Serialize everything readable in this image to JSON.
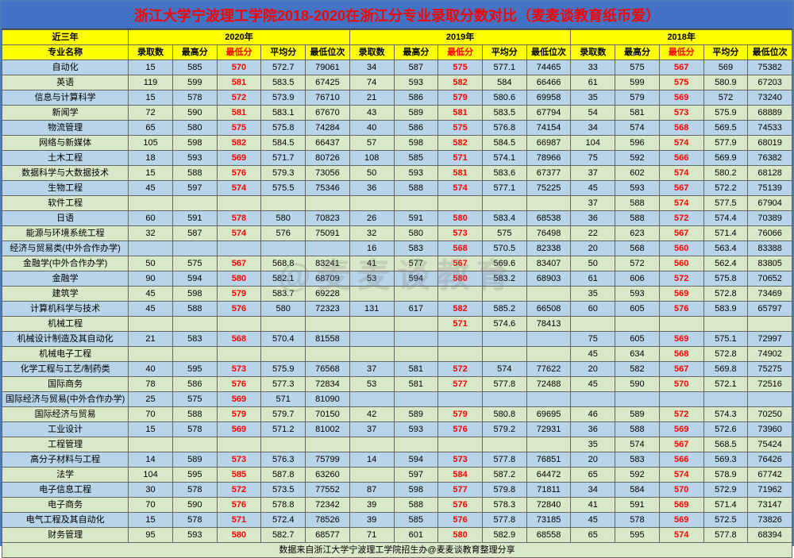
{
  "title": "浙江大学宁波理工学院2018-2020在浙江分专业录取分数对比（麦麦谈教育纸币爱）",
  "corner_header": "近三年",
  "major_header": "专业名称",
  "year_headers": [
    "2020年",
    "2019年",
    "2018年"
  ],
  "sub_headers": [
    "录取数",
    "最高分",
    "最低分",
    "平均分",
    "最低位次"
  ],
  "footer": "数据来自浙江大学宁波理工学院招生办@麦麦谈教育整理分享",
  "watermark": "@麦麦谈教育",
  "colors": {
    "title_bg": "#4472c4",
    "title_fg": "#ff0000",
    "header_bg": "#ffff00",
    "stripe_a": "#b8d4e8",
    "stripe_b": "#d9e8c9",
    "minscore_fg": "#ff0000"
  },
  "rows": [
    {
      "major": "自动化",
      "y2020": [
        "15",
        "585",
        "570",
        "572.7",
        "79061"
      ],
      "y2019": [
        "34",
        "587",
        "575",
        "577.1",
        "74465"
      ],
      "y2018": [
        "33",
        "575",
        "567",
        "569",
        "75382"
      ]
    },
    {
      "major": "英语",
      "y2020": [
        "119",
        "599",
        "581",
        "583.5",
        "67425"
      ],
      "y2019": [
        "74",
        "593",
        "582",
        "584",
        "66466"
      ],
      "y2018": [
        "61",
        "599",
        "575",
        "580.9",
        "67203"
      ]
    },
    {
      "major": "信息与计算科学",
      "y2020": [
        "15",
        "578",
        "572",
        "573.9",
        "76710"
      ],
      "y2019": [
        "21",
        "586",
        "579",
        "580.6",
        "69958"
      ],
      "y2018": [
        "35",
        "579",
        "569",
        "572",
        "73240"
      ]
    },
    {
      "major": "新闻学",
      "y2020": [
        "72",
        "590",
        "581",
        "583.1",
        "67670"
      ],
      "y2019": [
        "43",
        "589",
        "581",
        "583.5",
        "67794"
      ],
      "y2018": [
        "54",
        "581",
        "573",
        "575.9",
        "68889"
      ]
    },
    {
      "major": "物流管理",
      "y2020": [
        "65",
        "580",
        "575",
        "575.8",
        "74284"
      ],
      "y2019": [
        "40",
        "586",
        "575",
        "576.8",
        "74154"
      ],
      "y2018": [
        "34",
        "574",
        "568",
        "569.5",
        "74533"
      ]
    },
    {
      "major": "网络与新媒体",
      "y2020": [
        "105",
        "598",
        "582",
        "584.5",
        "66437"
      ],
      "y2019": [
        "57",
        "598",
        "582",
        "584.5",
        "66987"
      ],
      "y2018": [
        "104",
        "596",
        "574",
        "577.9",
        "68019"
      ]
    },
    {
      "major": "土木工程",
      "y2020": [
        "18",
        "593",
        "569",
        "571.7",
        "80726"
      ],
      "y2019": [
        "108",
        "585",
        "571",
        "574.1",
        "78966"
      ],
      "y2018": [
        "75",
        "592",
        "566",
        "569.9",
        "76382"
      ]
    },
    {
      "major": "数据科学与大数据技术",
      "y2020": [
        "15",
        "588",
        "576",
        "579.3",
        "73056"
      ],
      "y2019": [
        "50",
        "593",
        "581",
        "583.6",
        "67377"
      ],
      "y2018": [
        "37",
        "602",
        "574",
        "580.2",
        "68128"
      ]
    },
    {
      "major": "生物工程",
      "y2020": [
        "45",
        "597",
        "574",
        "575.5",
        "75346"
      ],
      "y2019": [
        "36",
        "588",
        "574",
        "577.1",
        "75225"
      ],
      "y2018": [
        "45",
        "593",
        "567",
        "572.2",
        "75139"
      ]
    },
    {
      "major": "软件工程",
      "y2020": [
        "",
        "",
        "",
        "",
        ""
      ],
      "y2019": [
        "",
        "",
        "",
        "",
        ""
      ],
      "y2018": [
        "37",
        "588",
        "574",
        "577.5",
        "67904"
      ]
    },
    {
      "major": "日语",
      "y2020": [
        "60",
        "591",
        "578",
        "580",
        "70823"
      ],
      "y2019": [
        "26",
        "591",
        "580",
        "583.4",
        "68538"
      ],
      "y2018": [
        "36",
        "588",
        "572",
        "574.4",
        "70389"
      ]
    },
    {
      "major": "能源与环境系统工程",
      "y2020": [
        "32",
        "587",
        "574",
        "576",
        "75091"
      ],
      "y2019": [
        "32",
        "580",
        "573",
        "575",
        "76498"
      ],
      "y2018": [
        "22",
        "623",
        "567",
        "571.4",
        "76066"
      ]
    },
    {
      "major": "经济与贸易类(中外合作办学)",
      "y2020": [
        "",
        "",
        "",
        "",
        ""
      ],
      "y2019": [
        "16",
        "583",
        "568",
        "570.5",
        "82338"
      ],
      "y2018": [
        "20",
        "568",
        "560",
        "563.4",
        "83388"
      ]
    },
    {
      "major": "金融学(中外合作办学)",
      "y2020": [
        "50",
        "575",
        "567",
        "568.8",
        "83241"
      ],
      "y2019": [
        "41",
        "577",
        "567",
        "569.6",
        "83407"
      ],
      "y2018": [
        "50",
        "572",
        "560",
        "562.4",
        "83805"
      ]
    },
    {
      "major": "金融学",
      "y2020": [
        "90",
        "594",
        "580",
        "582.1",
        "68709"
      ],
      "y2019": [
        "53",
        "594",
        "580",
        "583.2",
        "68903"
      ],
      "y2018": [
        "61",
        "606",
        "572",
        "575.8",
        "70652"
      ]
    },
    {
      "major": "建筑学",
      "y2020": [
        "45",
        "598",
        "579",
        "583.7",
        "69228"
      ],
      "y2019": [
        "",
        "",
        "",
        "",
        ""
      ],
      "y2018": [
        "35",
        "593",
        "569",
        "572.8",
        "73469"
      ]
    },
    {
      "major": "计算机科学与技术",
      "y2020": [
        "45",
        "588",
        "576",
        "580",
        "72323"
      ],
      "y2019": [
        "131",
        "617",
        "582",
        "585.2",
        "66508"
      ],
      "y2018": [
        "60",
        "605",
        "576",
        "583.9",
        "65797"
      ]
    },
    {
      "major": "机械工程",
      "y2020": [
        "",
        "",
        "",
        "",
        ""
      ],
      "y2019": [
        "",
        "",
        "571",
        "574.6",
        "78413"
      ],
      "y2018": [
        "",
        "",
        "",
        "",
        ""
      ]
    },
    {
      "major": "机械设计制造及其自动化",
      "y2020": [
        "21",
        "583",
        "568",
        "570.4",
        "81558"
      ],
      "y2019": [
        "",
        "",
        "",
        "",
        ""
      ],
      "y2018": [
        "75",
        "605",
        "569",
        "575.1",
        "72997"
      ]
    },
    {
      "major": "机械电子工程",
      "y2020": [
        "",
        "",
        "",
        "",
        ""
      ],
      "y2019": [
        "",
        "",
        "",
        "",
        ""
      ],
      "y2018": [
        "45",
        "634",
        "568",
        "572.8",
        "74902"
      ]
    },
    {
      "major": "化学工程与工艺/制药类",
      "y2020": [
        "40",
        "595",
        "573",
        "575.9",
        "76568"
      ],
      "y2019": [
        "37",
        "581",
        "572",
        "574",
        "77622"
      ],
      "y2018": [
        "20",
        "582",
        "567",
        "569.8",
        "75275"
      ]
    },
    {
      "major": "国际商务",
      "y2020": [
        "78",
        "586",
        "576",
        "577.3",
        "72834"
      ],
      "y2019": [
        "53",
        "581",
        "577",
        "577.8",
        "72488"
      ],
      "y2018": [
        "45",
        "590",
        "570",
        "572.1",
        "72516"
      ]
    },
    {
      "major": "国际经济与贸易(中外合作办学)",
      "y2020": [
        "25",
        "575",
        "569",
        "571",
        "81090"
      ],
      "y2019": [
        "",
        "",
        "",
        "",
        ""
      ],
      "y2018": [
        "",
        "",
        "",
        "",
        ""
      ]
    },
    {
      "major": "国际经济与贸易",
      "y2020": [
        "70",
        "588",
        "579",
        "579.7",
        "70150"
      ],
      "y2019": [
        "42",
        "589",
        "579",
        "580.8",
        "69695"
      ],
      "y2018": [
        "46",
        "589",
        "572",
        "574.3",
        "70250"
      ]
    },
    {
      "major": "工业设计",
      "y2020": [
        "15",
        "578",
        "569",
        "571.2",
        "81002"
      ],
      "y2019": [
        "37",
        "593",
        "576",
        "579.2",
        "72931"
      ],
      "y2018": [
        "36",
        "588",
        "569",
        "572.6",
        "73960"
      ]
    },
    {
      "major": "工程管理",
      "y2020": [
        "",
        "",
        "",
        "",
        ""
      ],
      "y2019": [
        "",
        "",
        "",
        "",
        ""
      ],
      "y2018": [
        "35",
        "574",
        "567",
        "568.5",
        "75424"
      ]
    },
    {
      "major": "高分子材料与工程",
      "y2020": [
        "14",
        "589",
        "573",
        "576.3",
        "75799"
      ],
      "y2019": [
        "14",
        "594",
        "573",
        "577.8",
        "76851"
      ],
      "y2018": [
        "20",
        "583",
        "566",
        "569.3",
        "76426"
      ]
    },
    {
      "major": "法学",
      "y2020": [
        "104",
        "595",
        "585",
        "587.8",
        "63260"
      ],
      "y2019": [
        "",
        "597",
        "584",
        "587.2",
        "64472"
      ],
      "y2018": [
        "65",
        "592",
        "574",
        "578.9",
        "67742"
      ]
    },
    {
      "major": "电子信息工程",
      "y2020": [
        "30",
        "578",
        "572",
        "573.5",
        "77552"
      ],
      "y2019": [
        "87",
        "598",
        "577",
        "579.8",
        "71811"
      ],
      "y2018": [
        "34",
        "584",
        "570",
        "572.9",
        "71962"
      ]
    },
    {
      "major": "电子商务",
      "y2020": [
        "70",
        "590",
        "576",
        "578.8",
        "72342"
      ],
      "y2019": [
        "39",
        "588",
        "576",
        "578.3",
        "72840"
      ],
      "y2018": [
        "41",
        "591",
        "569",
        "571.4",
        "73147"
      ]
    },
    {
      "major": "电气工程及其自动化",
      "y2020": [
        "15",
        "578",
        "571",
        "572.4",
        "78526"
      ],
      "y2019": [
        "39",
        "585",
        "576",
        "577.8",
        "73185"
      ],
      "y2018": [
        "45",
        "578",
        "569",
        "572.5",
        "73826"
      ]
    },
    {
      "major": "财务管理",
      "y2020": [
        "95",
        "593",
        "580",
        "582.7",
        "68577"
      ],
      "y2019": [
        "71",
        "601",
        "580",
        "582.9",
        "68558"
      ],
      "y2018": [
        "65",
        "595",
        "574",
        "577.8",
        "68394"
      ]
    }
  ]
}
